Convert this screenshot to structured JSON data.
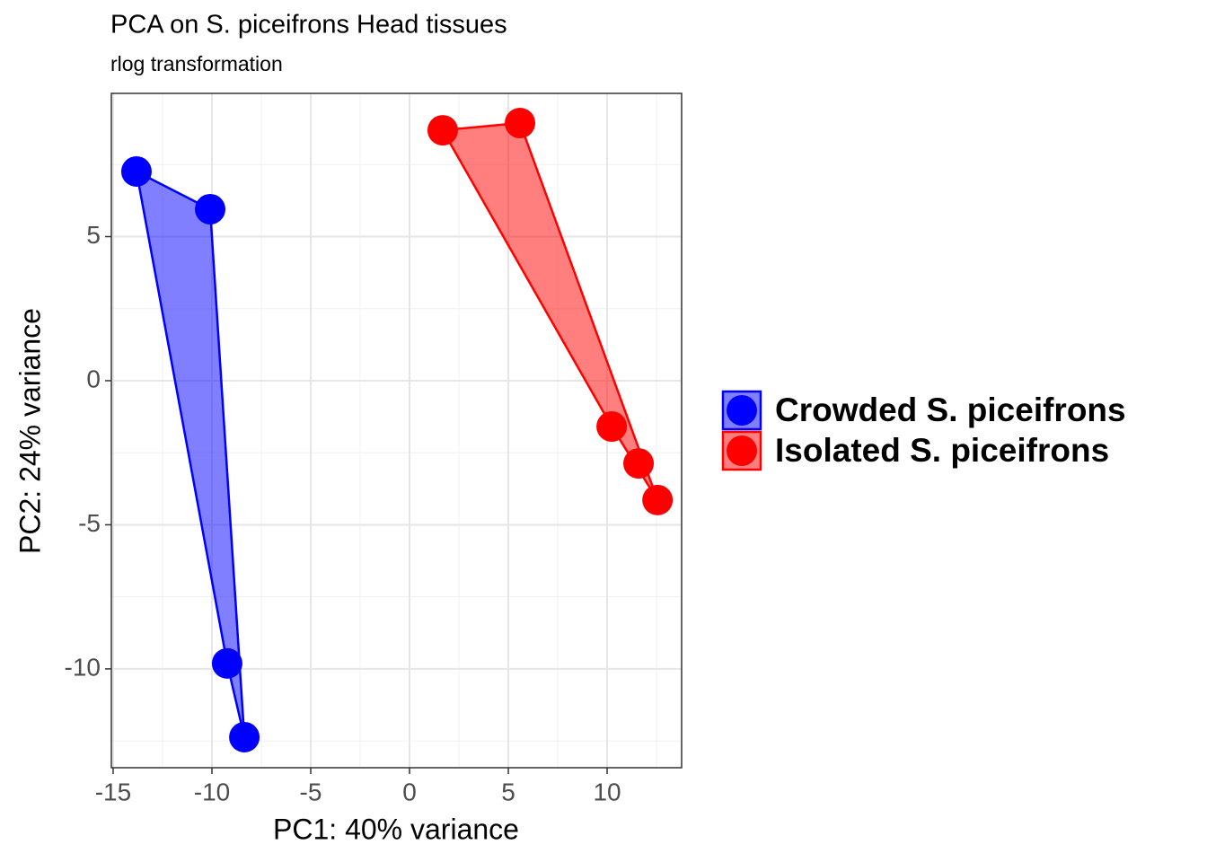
{
  "chart_data": {
    "type": "scatter",
    "title": "PCA on S. piceifrons Head tissues",
    "subtitle": "rlog transformation",
    "x_label": "PC1: 40% variance",
    "y_label": "PC2: 24% variance",
    "xlim": [
      -15.09,
      13.77
    ],
    "ylim": [
      -13.43,
      9.97
    ],
    "xticks": [
      -15,
      -10,
      -5,
      0,
      5,
      10
    ],
    "yticks": [
      -10,
      -5,
      0,
      5
    ],
    "grid": true,
    "legend": "right",
    "hull": true,
    "series": [
      {
        "name": "Crowded S. piceifrons",
        "color": "#0000ff",
        "x": [
          -13.82,
          -10.09,
          -9.23,
          -8.36
        ],
        "y": [
          7.26,
          5.95,
          -9.81,
          -12.37
        ]
      },
      {
        "name": "Isolated S. piceifrons",
        "color": "#ff0000",
        "x": [
          1.68,
          5.59,
          10.23,
          11.59,
          12.55
        ],
        "y": [
          8.69,
          8.94,
          -1.59,
          -2.87,
          -4.14
        ]
      }
    ]
  }
}
